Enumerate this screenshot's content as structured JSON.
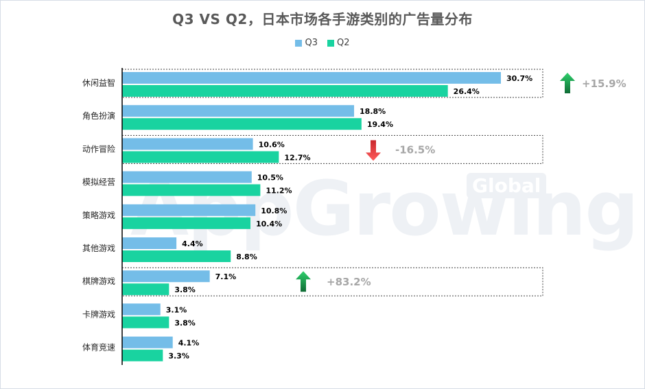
{
  "chart_data": {
    "type": "bar",
    "orientation": "horizontal",
    "title": "Q3 VS Q2，日本市场各手游类别的广告量分布",
    "categories": [
      "休闲益智",
      "角色扮演",
      "动作冒险",
      "模拟经营",
      "策略游戏",
      "其他游戏",
      "棋牌游戏",
      "卡牌游戏",
      "体育竞速"
    ],
    "series": [
      {
        "name": "Q3",
        "color": "#74bde8",
        "values": [
          30.7,
          18.8,
          10.6,
          10.5,
          10.8,
          4.4,
          7.1,
          3.1,
          4.1
        ],
        "labels": [
          "30.7%",
          "18.8%",
          "10.6%",
          "10.5%",
          "10.8%",
          "4.4%",
          "7.1%",
          "3.1%",
          "4.1%"
        ]
      },
      {
        "name": "Q2",
        "color": "#19d3a0",
        "values": [
          26.4,
          19.4,
          12.7,
          11.2,
          10.4,
          8.8,
          3.8,
          3.8,
          3.3
        ],
        "labels": [
          "26.4%",
          "19.4%",
          "12.7%",
          "11.2%",
          "10.4%",
          "8.8%",
          "3.8%",
          "3.8%",
          "3.3%"
        ]
      }
    ],
    "xlim": [
      0,
      32
    ],
    "grid": false,
    "legend": "top-center",
    "annotations": [
      {
        "category": "休闲益智",
        "text": "+15.9%",
        "direction": "up"
      },
      {
        "category": "动作冒险",
        "text": "-16.5%",
        "direction": "down"
      },
      {
        "category": "棋牌游戏",
        "text": "+83.2%",
        "direction": "up"
      }
    ]
  },
  "watermark": {
    "text": "AppGrowing",
    "badge": "Global"
  }
}
